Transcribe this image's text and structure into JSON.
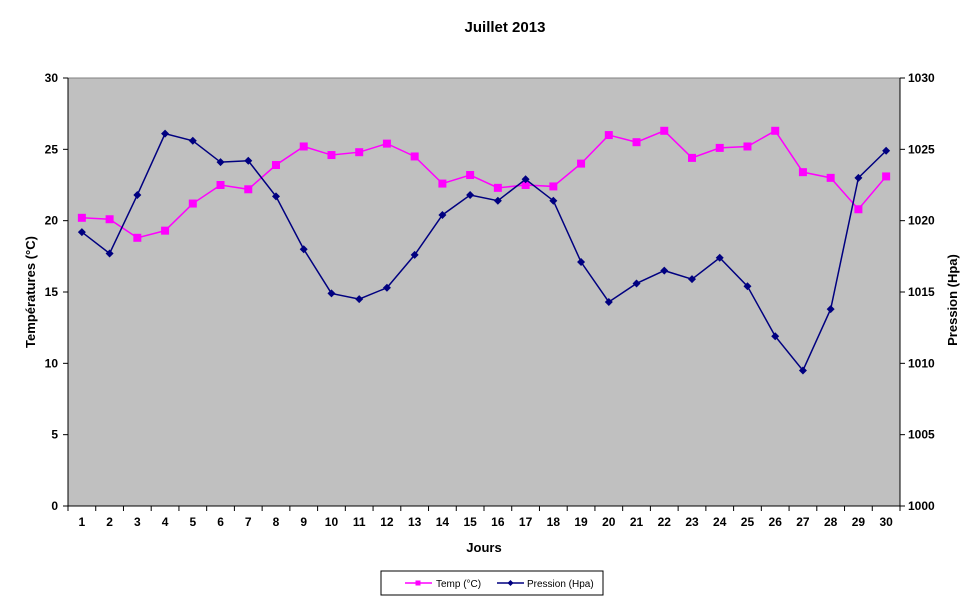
{
  "chart_data": {
    "type": "line",
    "title": "Juillet 2013",
    "xlabel": "Jours",
    "ylabel_left": "Températures (°C)",
    "ylabel_right": "Pression (Hpa)",
    "categories": [
      "1",
      "2",
      "3",
      "4",
      "5",
      "6",
      "7",
      "8",
      "9",
      "10",
      "11",
      "12",
      "13",
      "14",
      "15",
      "16",
      "17",
      "18",
      "19",
      "20",
      "21",
      "22",
      "23",
      "24",
      "25",
      "26",
      "27",
      "28",
      "29",
      "30"
    ],
    "ylim_left": [
      0,
      30
    ],
    "yticks_left": [
      "0",
      "5",
      "10",
      "15",
      "20",
      "25",
      "30"
    ],
    "ylim_right": [
      1000,
      1030
    ],
    "yticks_right": [
      "1000",
      "1005",
      "1010",
      "1015",
      "1020",
      "1025",
      "1030"
    ],
    "grid": false,
    "plot_background": "#C0C0C0",
    "legend_position": "bottom",
    "series": [
      {
        "name": "Temp (°C)",
        "axis": "left",
        "color": "#FF00FF",
        "marker": "square",
        "values": [
          20.2,
          20.1,
          18.8,
          19.3,
          21.2,
          22.5,
          22.2,
          23.9,
          25.2,
          24.6,
          24.8,
          25.4,
          24.5,
          22.6,
          23.2,
          22.3,
          22.5,
          22.4,
          24.0,
          26.0,
          25.5,
          26.3,
          24.4,
          25.1,
          25.2,
          26.3,
          23.4,
          23.0,
          20.8,
          23.1
        ]
      },
      {
        "name": "Pression (Hpa)",
        "axis": "right",
        "color": "#000080",
        "marker": "diamond",
        "values": [
          1019.2,
          1017.7,
          1021.8,
          1026.1,
          1025.6,
          1024.1,
          1024.2,
          1021.7,
          1018.0,
          1014.9,
          1014.5,
          1015.3,
          1017.6,
          1020.4,
          1021.8,
          1021.4,
          1022.9,
          1021.4,
          1017.1,
          1014.3,
          1015.6,
          1016.5,
          1015.9,
          1017.4,
          1015.4,
          1011.9,
          1009.5,
          1013.8,
          1023.0,
          1024.9
        ]
      }
    ]
  }
}
